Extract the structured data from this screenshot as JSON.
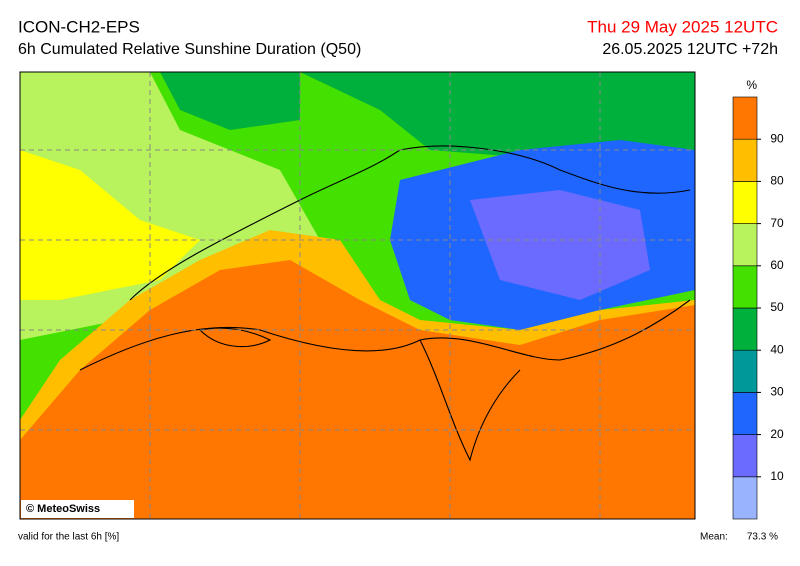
{
  "header": {
    "model": "ICON-CH2-EPS",
    "title": "6h Cumulated Relative Sunshine Duration (Q50)",
    "valid_time": "Thu 29 May 2025 12UTC",
    "run": "26.05.2025 12UTC +72h"
  },
  "colorbar": {
    "unit": "%",
    "range": [
      0,
      100
    ],
    "ticks": [
      10,
      20,
      30,
      40,
      50,
      60,
      70,
      80,
      90
    ],
    "colors": [
      "#99b3ff",
      "#6b6bff",
      "#1f66ff",
      "#009999",
      "#00b03c",
      "#44e000",
      "#b8f25c",
      "#ffff00",
      "#ffbf00",
      "#ff7700"
    ]
  },
  "footer": {
    "validity": "valid for the last 6h [%]",
    "mean_label": "Mean:",
    "mean_value": "73.3 %"
  },
  "copyright": "© MeteoSwiss"
}
